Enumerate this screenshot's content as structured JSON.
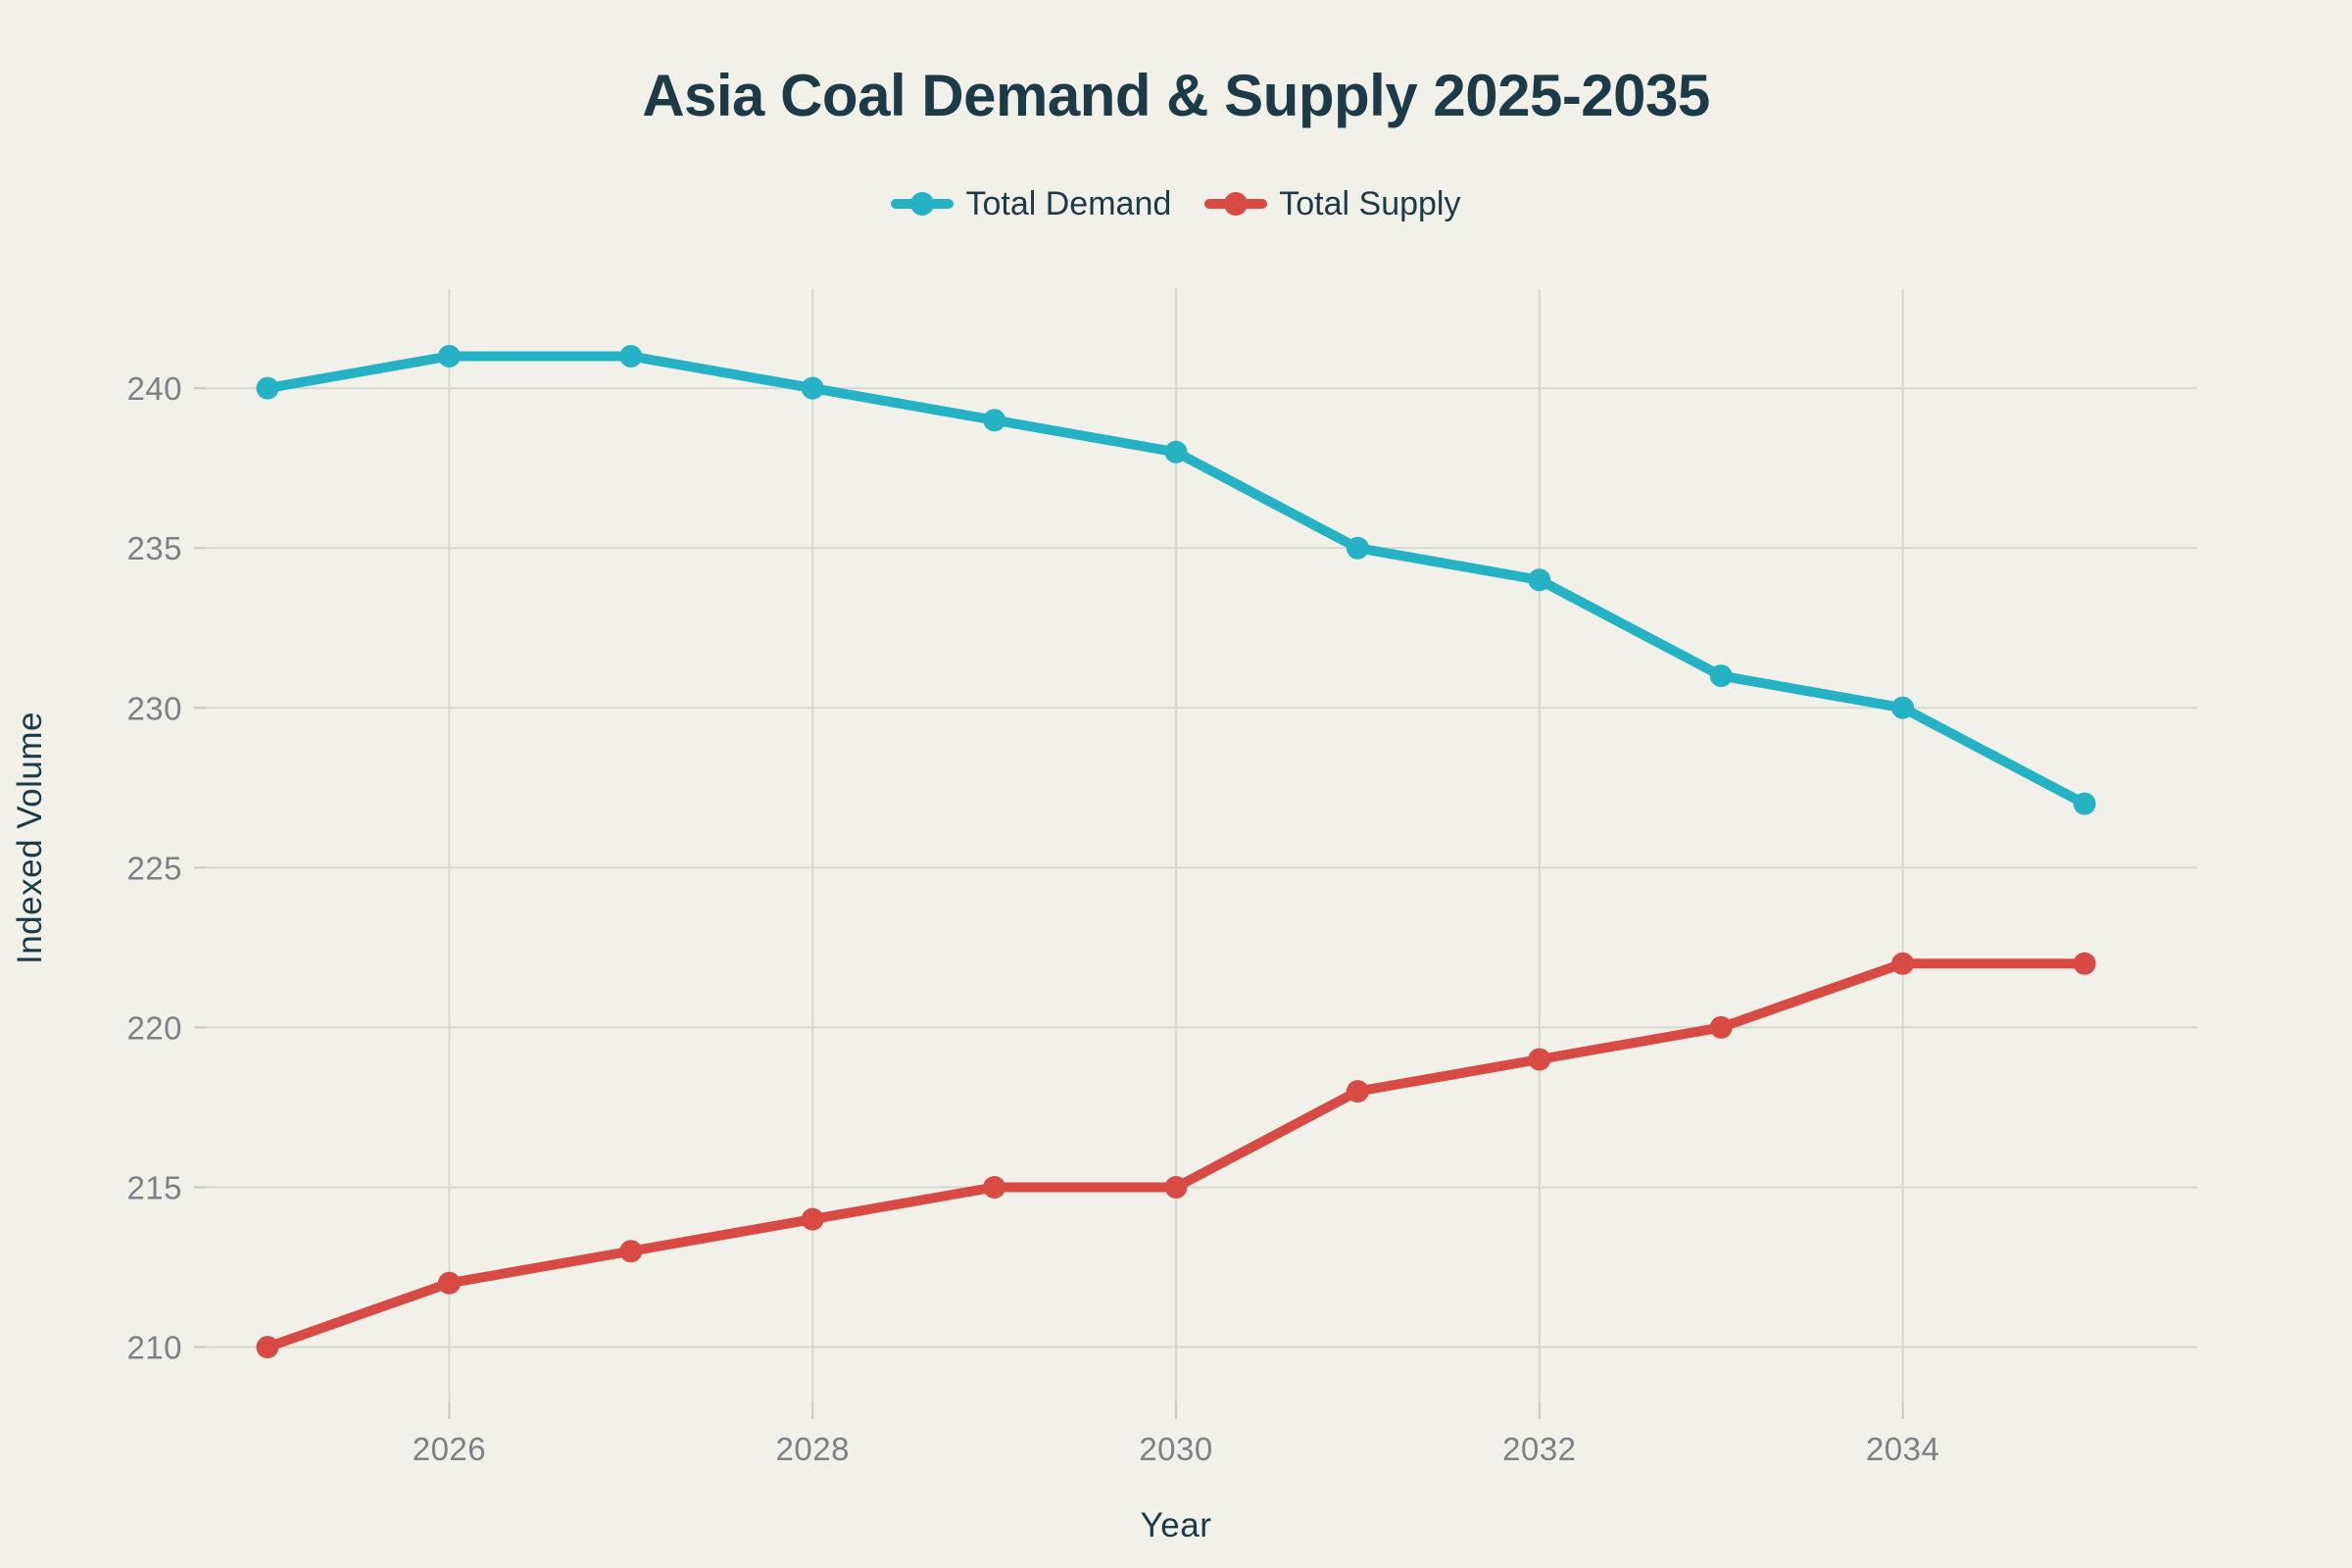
{
  "chart": {
    "title": "Asia Coal Demand & Supply 2025-2035",
    "xlabel": "Year",
    "ylabel": "Indexed Volume"
  },
  "chart_data": {
    "type": "line",
    "title": "Asia Coal Demand & Supply 2025-2035",
    "xlabel": "Year",
    "ylabel": "Indexed Volume",
    "x": [
      2025,
      2026,
      2027,
      2028,
      2029,
      2030,
      2031,
      2032,
      2033,
      2034,
      2035
    ],
    "series": [
      {
        "name": "Total Demand",
        "color": "#25b2c5",
        "values": [
          240,
          241,
          241,
          240,
          239,
          238,
          235,
          234,
          231,
          230,
          227
        ]
      },
      {
        "name": "Total Supply",
        "color": "#d84b45",
        "values": [
          210,
          212,
          213,
          214,
          215,
          215,
          218,
          219,
          220,
          222,
          222
        ]
      }
    ],
    "x_ticks": [
      2026,
      2028,
      2030,
      2032,
      2034
    ],
    "y_ticks": [
      210,
      215,
      220,
      225,
      230,
      235,
      240
    ],
    "xlim": [
      2024.66,
      2035.62
    ],
    "ylim": [
      208.3,
      243.1
    ],
    "grid": true,
    "legend_position": "top",
    "colors": {
      "background": "#f1f1ea",
      "grid_line": "#d7d8d2",
      "axis_tick": "#c6c8c3",
      "tick_label": "#7b8287",
      "text": "#1d3b46"
    }
  }
}
